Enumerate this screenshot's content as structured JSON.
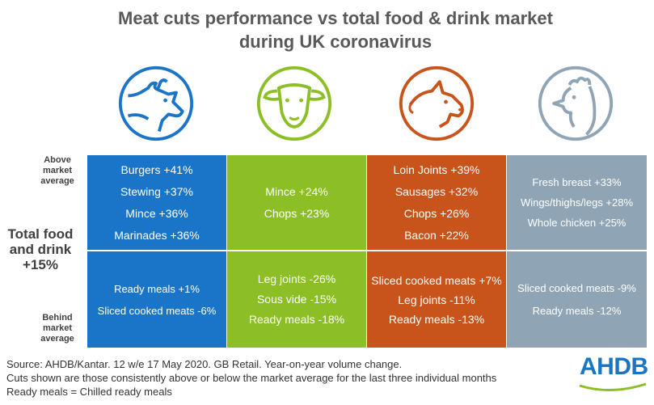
{
  "title_line1": "Meat cuts performance vs total food & drink market",
  "title_line2": "during UK coronavirus",
  "row_labels": {
    "above": [
      "Above",
      "market",
      "average"
    ],
    "total": [
      "Total food",
      "and drink",
      "+15%"
    ],
    "behind": [
      "Behind",
      "market",
      "average"
    ]
  },
  "colors": {
    "beef": "#1a75c9",
    "lamb": "#8cbf26",
    "pork": "#c8541b",
    "chicken": "#8fa5b5",
    "separator": "#ffffff"
  },
  "chart_data": {
    "type": "table",
    "market_average": "+15%",
    "columns": [
      {
        "icon": "cow-icon",
        "above": [
          "Burgers +41%",
          "Stewing +37%",
          "Mince +36%",
          "Marinades +36%"
        ],
        "above_values": [
          41,
          37,
          36,
          36
        ],
        "behind": [
          "Ready meals +1%",
          "Sliced cooked meats -6%"
        ],
        "behind_values": [
          1,
          -6
        ]
      },
      {
        "icon": "sheep-icon",
        "above": [
          "Mince +24%",
          "Chops +23%"
        ],
        "above_values": [
          24,
          23
        ],
        "behind": [
          "Leg joints -26%",
          "Sous vide -15%",
          "Ready meals -18%"
        ],
        "behind_values": [
          -26,
          -15,
          -18
        ]
      },
      {
        "icon": "pig-icon",
        "above": [
          "Loin Joints +39%",
          "Sausages +32%",
          "Chops +26%",
          "Bacon +22%"
        ],
        "above_values": [
          39,
          32,
          26,
          22
        ],
        "behind": [
          "Sliced cooked meats +7%",
          "Leg joints -11%",
          "Ready meals -13%"
        ],
        "behind_values": [
          7,
          -11,
          -13
        ]
      },
      {
        "icon": "chicken-icon",
        "above": [
          "Fresh breast +33%",
          "Wings/thighs/legs +28%",
          "Whole chicken +25%"
        ],
        "above_values": [
          33,
          28,
          25
        ],
        "behind": [
          "Sliced cooked meats  -9%",
          "Ready meals -12%"
        ],
        "behind_values": [
          -9,
          -12
        ]
      }
    ]
  },
  "footnotes": [
    "Source: AHDB/Kantar. 12 w/e 17 May 2020. GB Retail. Year-on-year volume change.",
    "Cuts shown are those consistently above or below the market average for the last three individual months",
    "Ready meals = Chilled ready meals"
  ],
  "logo": "AHDB"
}
